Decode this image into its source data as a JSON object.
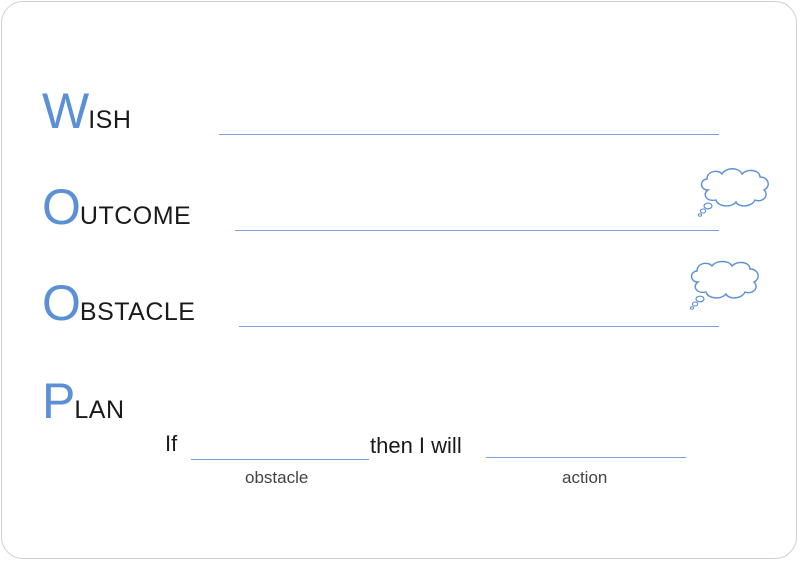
{
  "sections": [
    {
      "first": "W",
      "rest": "ish"
    },
    {
      "first": "O",
      "rest": "utcome"
    },
    {
      "first": "O",
      "rest": "bstacle"
    },
    {
      "first": "P",
      "rest": "lan"
    }
  ],
  "plan": {
    "if_label": "If",
    "then_label": "then I will",
    "obstacle_caption": "obstacle",
    "action_caption": "action"
  },
  "icons": [
    "thought-bubble-icon",
    "thought-bubble-icon"
  ],
  "colors": {
    "accent": "#5b8fd6",
    "rule": "#7aa2d6",
    "text": "#1a1a1a"
  }
}
